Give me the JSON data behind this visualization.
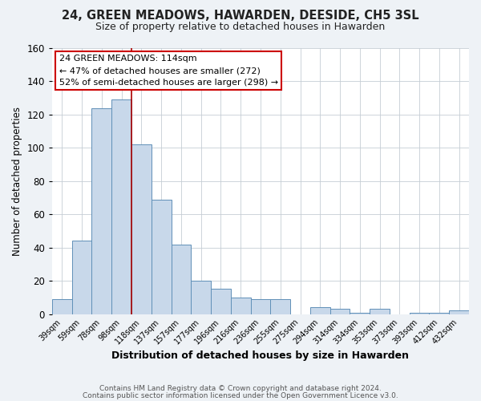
{
  "title": "24, GREEN MEADOWS, HAWARDEN, DEESIDE, CH5 3SL",
  "subtitle": "Size of property relative to detached houses in Hawarden",
  "xlabel": "Distribution of detached houses by size in Hawarden",
  "ylabel": "Number of detached properties",
  "bin_labels": [
    "39sqm",
    "59sqm",
    "78sqm",
    "98sqm",
    "118sqm",
    "137sqm",
    "157sqm",
    "177sqm",
    "196sqm",
    "216sqm",
    "236sqm",
    "255sqm",
    "275sqm",
    "294sqm",
    "314sqm",
    "334sqm",
    "353sqm",
    "373sqm",
    "393sqm",
    "412sqm",
    "432sqm"
  ],
  "bar_values": [
    9,
    44,
    124,
    129,
    102,
    69,
    42,
    20,
    15,
    10,
    9,
    9,
    0,
    4,
    3,
    1,
    3,
    0,
    1,
    1,
    2
  ],
  "bar_color": "#c8d8ea",
  "bar_edge_color": "#6090b8",
  "ylim": [
    0,
    160
  ],
  "yticks": [
    0,
    20,
    40,
    60,
    80,
    100,
    120,
    140,
    160
  ],
  "vline_x_index": 4,
  "vline_color": "#aa0000",
  "annotation_title": "24 GREEN MEADOWS: 114sqm",
  "annotation_line1": "← 47% of detached houses are smaller (272)",
  "annotation_line2": "52% of semi-detached houses are larger (298) →",
  "annotation_box_color": "#ffffff",
  "annotation_box_edge_color": "#cc0000",
  "footer_line1": "Contains HM Land Registry data © Crown copyright and database right 2024.",
  "footer_line2": "Contains public sector information licensed under the Open Government Licence v3.0.",
  "background_color": "#eef2f6",
  "plot_background_color": "#ffffff",
  "grid_color": "#c5cdd5"
}
